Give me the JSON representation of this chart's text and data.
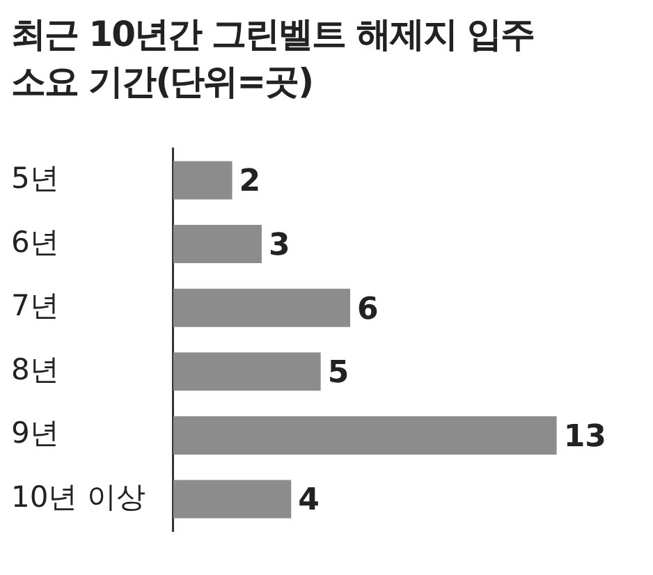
{
  "chart_data": {
    "type": "bar",
    "orientation": "horizontal",
    "title": "최근 10년간 그린벨트 해제지 입주",
    "subtitle": "소요 기간(단위=곳)",
    "categories": [
      "5년",
      "6년",
      "7년",
      "8년",
      "9년",
      "10년 이상"
    ],
    "values": [
      2,
      3,
      6,
      5,
      13,
      4
    ],
    "color": "#8c8c8c",
    "data_labels": true,
    "grid": false,
    "legend": false
  }
}
